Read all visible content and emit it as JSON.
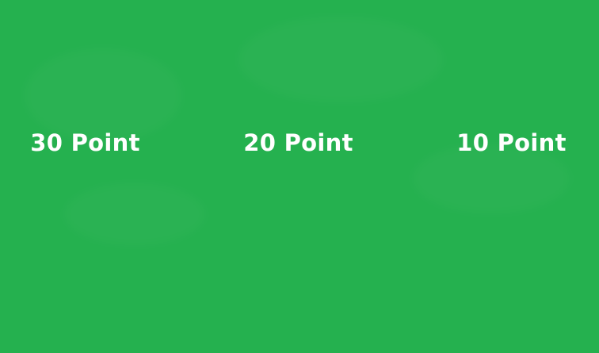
{
  "board": {
    "background_color": "#25b14f",
    "text_color": "#ffffff"
  },
  "zones": [
    {
      "label": "30 Point"
    },
    {
      "label": "20 Point"
    },
    {
      "label": "10 Point"
    }
  ]
}
